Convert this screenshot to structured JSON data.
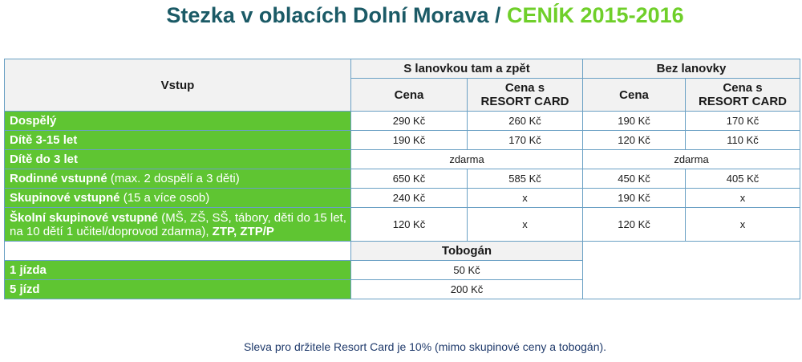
{
  "title": {
    "part1": "Stezka v oblacích Dolní Morava / ",
    "part2": "CENÍK 2015-2016"
  },
  "table": {
    "header": {
      "vstup": "Vstup",
      "group_with_lift": "S lanovkou tam a zpět",
      "group_without_lift": "Bez lanovky",
      "cena": "Cena",
      "cena_resort_line1": "Cena s",
      "cena_resort_line2": "RESORT CARD"
    },
    "rows": [
      {
        "label_bold": "Dospělý",
        "label_rest": "",
        "label_bold2": "",
        "v1": "290 Kč",
        "v2": "260 Kč",
        "v3": "190 Kč",
        "v4": "170 Kč"
      },
      {
        "label_bold": "Dítě 3-15 let",
        "label_rest": "",
        "label_bold2": "",
        "v1": "190 Kč",
        "v2": "170 Kč",
        "v3": "120 Kč",
        "v4": "110 Kč"
      },
      {
        "label_bold": "Dítě do 3 let",
        "label_rest": "",
        "label_bold2": "",
        "free_with_lift": "zdarma",
        "free_without_lift": "zdarma"
      },
      {
        "label_bold": "Rodinné vstupné",
        "label_rest": " (max. 2 dospělí a 3 děti)",
        "label_bold2": "",
        "v1": "650 Kč",
        "v2": "585 Kč",
        "v3": "450 Kč",
        "v4": "405 Kč"
      },
      {
        "label_bold": "Skupinové vstupné",
        "label_rest": " (15 a více osob)",
        "label_bold2": "",
        "v1": "240 Kč",
        "v2": "x",
        "v3": "190 Kč",
        "v4": "x"
      },
      {
        "label_bold": "Školní skupinové vstupné",
        "label_rest": " (MŠ, ZŠ, SŠ, tábory, děti do 15 let, na 10 dětí 1 učitel/doprovod zdarma), ",
        "label_bold2": "ZTP, ZTP/P",
        "v1": "120 Kč",
        "v2": "x",
        "v3": "120 Kč",
        "v4": "x"
      }
    ],
    "tobogan": {
      "header": "Tobogán",
      "rows": [
        {
          "label": "1 jízda",
          "value": "50 Kč"
        },
        {
          "label": "5 jízd",
          "value": "200 Kč"
        }
      ]
    }
  },
  "note": "Sleva pro držitele Resort Card je 10% (mimo skupinové ceny a tobogán).",
  "colors": {
    "green": "#5fc532",
    "title_teal": "#1b5a66",
    "title_green": "#6fcf2a",
    "border": "#6aa0c4"
  }
}
